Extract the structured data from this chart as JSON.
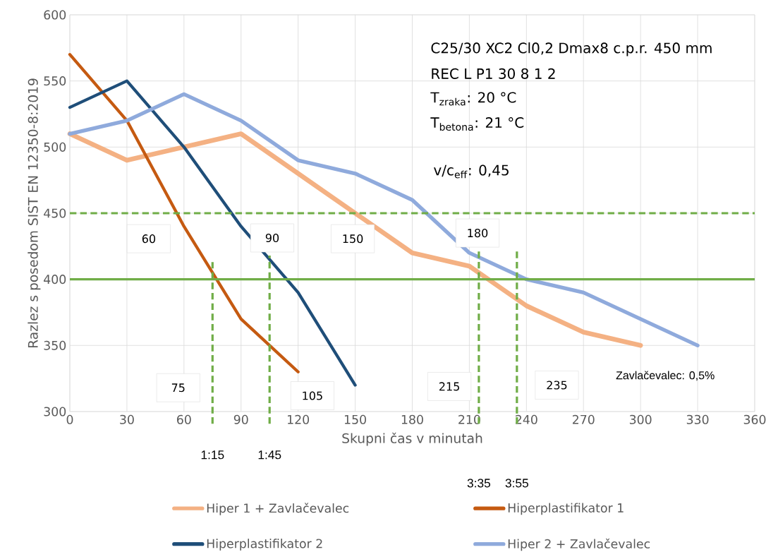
{
  "chart_data": {
    "type": "line",
    "xlabel": "Skupni čas v minutah",
    "ylabel": "Razlez s posedom SIST EN 12350-8:2019",
    "xlim": [
      0,
      360
    ],
    "xticks": [
      0,
      30,
      60,
      90,
      120,
      150,
      180,
      210,
      240,
      270,
      300,
      330,
      360
    ],
    "ylim": [
      300,
      600
    ],
    "yticks": [
      300,
      350,
      400,
      450,
      500,
      550,
      600
    ],
    "grid": true,
    "legend": "bottom",
    "marker": "none",
    "line_style": "solid",
    "series": [
      {
        "name": "Hiper 1 + Zavlačevalec",
        "color": "#f4b183",
        "x": [
          0,
          30,
          60,
          90,
          120,
          150,
          180,
          210,
          240,
          270,
          300
        ],
        "values": [
          510,
          490,
          500,
          510,
          480,
          450,
          420,
          410,
          380,
          360,
          350
        ]
      },
      {
        "name": "Hiperplastifikator 1",
        "color": "#c55a11",
        "x": [
          0,
          30,
          60,
          90,
          120
        ],
        "values": [
          570,
          520,
          440,
          370,
          330
        ]
      },
      {
        "name": "Hiperplastifikator 2",
        "color": "#1f4e79",
        "x": [
          0,
          30,
          60,
          90,
          120,
          150
        ],
        "values": [
          530,
          550,
          500,
          440,
          390,
          320
        ]
      },
      {
        "name": "Hiper 2 + Zavlačevalec",
        "color": "#8faadc",
        "x": [
          0,
          30,
          60,
          90,
          120,
          150,
          180,
          210,
          240,
          270,
          300,
          330
        ],
        "values": [
          510,
          520,
          540,
          520,
          490,
          480,
          460,
          420,
          400,
          390,
          370,
          350
        ]
      }
    ],
    "ref_lines": [
      {
        "axis": "y",
        "value": 450,
        "color": "#70ad47",
        "line_style": "dashed"
      },
      {
        "axis": "y",
        "value": 400,
        "color": "#70ad47",
        "line_style": "solid"
      },
      {
        "axis": "x",
        "value": 75,
        "color": "#70ad47",
        "line_style": "dashed"
      },
      {
        "axis": "x",
        "value": 105,
        "color": "#70ad47",
        "line_style": "dashed"
      },
      {
        "axis": "x",
        "value": 215,
        "color": "#70ad47",
        "line_style": "dashed"
      },
      {
        "axis": "x",
        "value": 235,
        "color": "#70ad47",
        "line_style": "dashed"
      }
    ],
    "annotations": [
      "C25/30 XC2 Cl0,2 Dmax8 c.p.r. 450 mm",
      "REC L P1 30 8 1 2",
      "T$_{zraka}$: 20 °C",
      "T$_{betona}$: 21 °C",
      "v/c$_{eff}$: 0,45",
      "60",
      "90",
      "150",
      "180",
      "75",
      "105",
      "215",
      "235",
      "Zavlačevalec: 0,5%",
      "1:15",
      "1:45",
      "3:35",
      "3:55"
    ]
  }
}
